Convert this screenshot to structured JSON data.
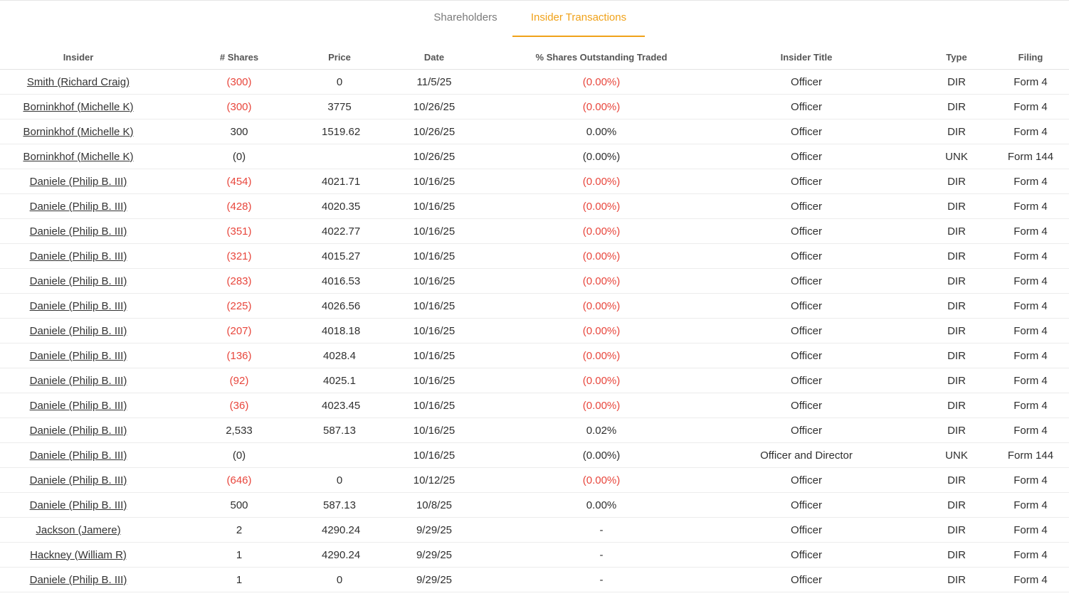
{
  "tabs": [
    {
      "label": "Shareholders",
      "active": false
    },
    {
      "label": "Insider Transactions",
      "active": true
    }
  ],
  "colors": {
    "accent": "#f0a21a",
    "negative": "#e8463c"
  },
  "table": {
    "headers": [
      "Insider",
      "# Shares",
      "Price",
      "Date",
      "% Shares Outstanding Traded",
      "Insider Title",
      "Type",
      "Filing"
    ],
    "rows": [
      {
        "insider": "Smith (Richard Craig)",
        "shares": "(300)",
        "price": "0",
        "date": "11/5/25",
        "pct": "(0.00%)",
        "title": "Officer",
        "type": "DIR",
        "filing": "Form 4",
        "negative": true
      },
      {
        "insider": "Borninkhof (Michelle K)",
        "shares": "(300)",
        "price": "3775",
        "date": "10/26/25",
        "pct": "(0.00%)",
        "title": "Officer",
        "type": "DIR",
        "filing": "Form 4",
        "negative": true
      },
      {
        "insider": "Borninkhof (Michelle K)",
        "shares": "300",
        "price": "1519.62",
        "date": "10/26/25",
        "pct": "0.00%",
        "title": "Officer",
        "type": "DIR",
        "filing": "Form 4",
        "negative": false
      },
      {
        "insider": "Borninkhof (Michelle K)",
        "shares": "(0)",
        "price": "",
        "date": "10/26/25",
        "pct": "(0.00%)",
        "title": "Officer",
        "type": "UNK",
        "filing": "Form 144",
        "negative": false
      },
      {
        "insider": "Daniele (Philip B. III)",
        "shares": "(454)",
        "price": "4021.71",
        "date": "10/16/25",
        "pct": "(0.00%)",
        "title": "Officer",
        "type": "DIR",
        "filing": "Form 4",
        "negative": true
      },
      {
        "insider": "Daniele (Philip B. III)",
        "shares": "(428)",
        "price": "4020.35",
        "date": "10/16/25",
        "pct": "(0.00%)",
        "title": "Officer",
        "type": "DIR",
        "filing": "Form 4",
        "negative": true
      },
      {
        "insider": "Daniele (Philip B. III)",
        "shares": "(351)",
        "price": "4022.77",
        "date": "10/16/25",
        "pct": "(0.00%)",
        "title": "Officer",
        "type": "DIR",
        "filing": "Form 4",
        "negative": true
      },
      {
        "insider": "Daniele (Philip B. III)",
        "shares": "(321)",
        "price": "4015.27",
        "date": "10/16/25",
        "pct": "(0.00%)",
        "title": "Officer",
        "type": "DIR",
        "filing": "Form 4",
        "negative": true
      },
      {
        "insider": "Daniele (Philip B. III)",
        "shares": "(283)",
        "price": "4016.53",
        "date": "10/16/25",
        "pct": "(0.00%)",
        "title": "Officer",
        "type": "DIR",
        "filing": "Form 4",
        "negative": true
      },
      {
        "insider": "Daniele (Philip B. III)",
        "shares": "(225)",
        "price": "4026.56",
        "date": "10/16/25",
        "pct": "(0.00%)",
        "title": "Officer",
        "type": "DIR",
        "filing": "Form 4",
        "negative": true
      },
      {
        "insider": "Daniele (Philip B. III)",
        "shares": "(207)",
        "price": "4018.18",
        "date": "10/16/25",
        "pct": "(0.00%)",
        "title": "Officer",
        "type": "DIR",
        "filing": "Form 4",
        "negative": true
      },
      {
        "insider": "Daniele (Philip B. III)",
        "shares": "(136)",
        "price": "4028.4",
        "date": "10/16/25",
        "pct": "(0.00%)",
        "title": "Officer",
        "type": "DIR",
        "filing": "Form 4",
        "negative": true
      },
      {
        "insider": "Daniele (Philip B. III)",
        "shares": "(92)",
        "price": "4025.1",
        "date": "10/16/25",
        "pct": "(0.00%)",
        "title": "Officer",
        "type": "DIR",
        "filing": "Form 4",
        "negative": true
      },
      {
        "insider": "Daniele (Philip B. III)",
        "shares": "(36)",
        "price": "4023.45",
        "date": "10/16/25",
        "pct": "(0.00%)",
        "title": "Officer",
        "type": "DIR",
        "filing": "Form 4",
        "negative": true
      },
      {
        "insider": "Daniele (Philip B. III)",
        "shares": "2,533",
        "price": "587.13",
        "date": "10/16/25",
        "pct": "0.02%",
        "title": "Officer",
        "type": "DIR",
        "filing": "Form 4",
        "negative": false
      },
      {
        "insider": "Daniele (Philip B. III)",
        "shares": "(0)",
        "price": "",
        "date": "10/16/25",
        "pct": "(0.00%)",
        "title": "Officer and Director",
        "type": "UNK",
        "filing": "Form 144",
        "negative": false
      },
      {
        "insider": "Daniele (Philip B. III)",
        "shares": "(646)",
        "price": "0",
        "date": "10/12/25",
        "pct": "(0.00%)",
        "title": "Officer",
        "type": "DIR",
        "filing": "Form 4",
        "negative": true
      },
      {
        "insider": "Daniele (Philip B. III)",
        "shares": "500",
        "price": "587.13",
        "date": "10/8/25",
        "pct": "0.00%",
        "title": "Officer",
        "type": "DIR",
        "filing": "Form 4",
        "negative": false
      },
      {
        "insider": "Jackson (Jamere)",
        "shares": "2",
        "price": "4290.24",
        "date": "9/29/25",
        "pct": "-",
        "title": "Officer",
        "type": "DIR",
        "filing": "Form 4",
        "negative": false
      },
      {
        "insider": "Hackney (William R)",
        "shares": "1",
        "price": "4290.24",
        "date": "9/29/25",
        "pct": "-",
        "title": "Officer",
        "type": "DIR",
        "filing": "Form 4",
        "negative": false
      },
      {
        "insider": "Daniele (Philip B. III)",
        "shares": "1",
        "price": "0",
        "date": "9/29/25",
        "pct": "-",
        "title": "Officer",
        "type": "DIR",
        "filing": "Form 4",
        "negative": false
      }
    ]
  }
}
